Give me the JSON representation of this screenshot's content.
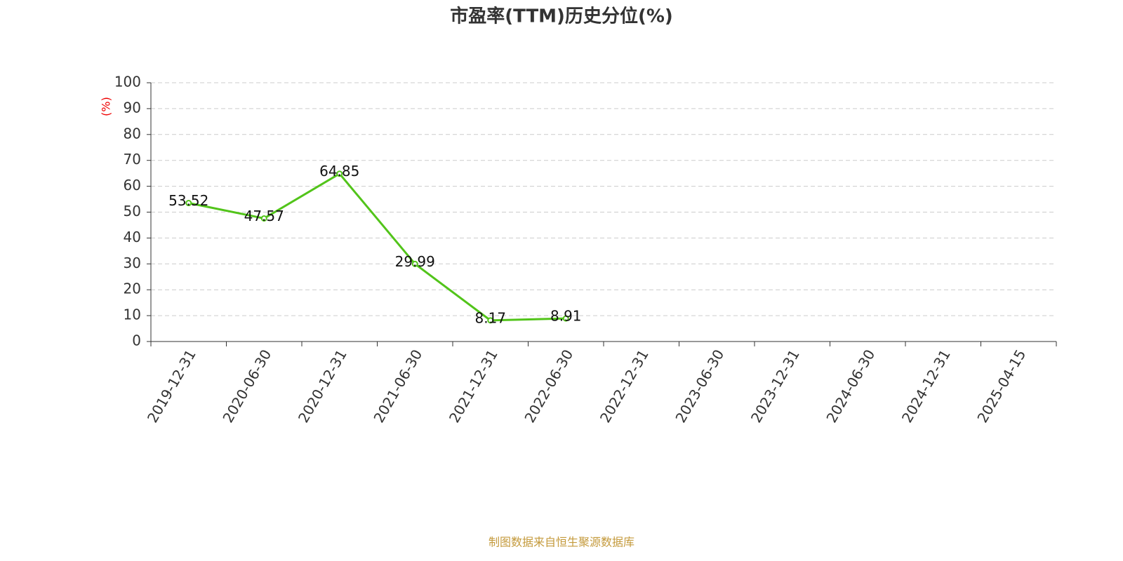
{
  "chart_data": {
    "type": "line",
    "title": "市盈率(TTM)历史分位(%)",
    "y_label": "(%)",
    "categories": [
      "2019-12-31",
      "2020-06-30",
      "2020-12-31",
      "2021-06-30",
      "2021-12-31",
      "2022-06-30",
      "2022-12-31",
      "2023-06-30",
      "2023-12-31",
      "2024-06-30",
      "2024-12-31",
      "2025-04-15"
    ],
    "values": [
      53.52,
      47.57,
      64.85,
      29.99,
      8.17,
      8.91,
      null,
      null,
      null,
      null,
      null,
      null
    ],
    "color": "#52c41a",
    "ylim": [
      0,
      100
    ],
    "yticks": [
      0,
      10,
      20,
      30,
      40,
      50,
      60,
      70,
      80,
      90,
      100
    ],
    "grid": true,
    "source": "制图数据来自恒生聚源数据库"
  }
}
